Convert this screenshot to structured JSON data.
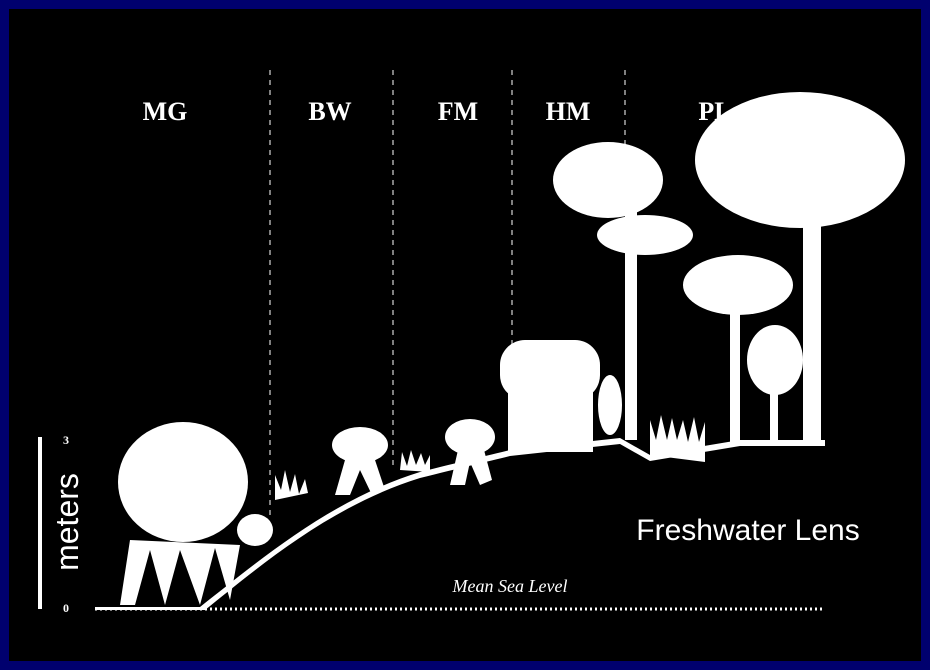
{
  "zones": [
    "MG",
    "BW",
    "FM",
    "HM",
    "PL"
  ],
  "scale": {
    "label": "meters",
    "top": 3,
    "bottom": 0
  },
  "mean_sea_level": "Mean Sea Level",
  "annotation": "Freshwater Lens"
}
